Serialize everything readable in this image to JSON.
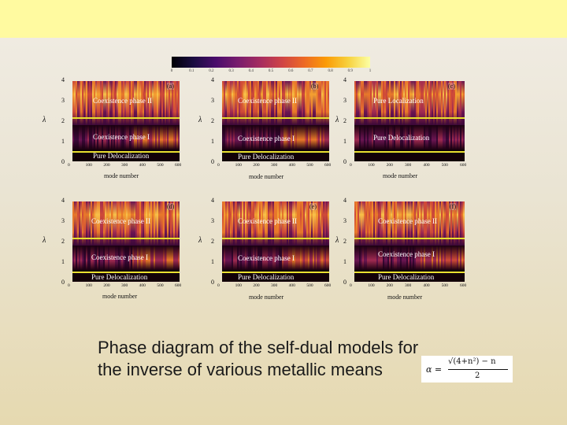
{
  "colorbar": {
    "ticks": [
      "0",
      "0.1",
      "0.2",
      "0.3",
      "0.4",
      "0.5",
      "0.6",
      "0.7",
      "0.8",
      "0.9",
      "1"
    ]
  },
  "panels": [
    {
      "letter": "(a)",
      "ylabel": "λ",
      "xlabel": "mode number",
      "yticks": [
        "4",
        "3",
        "2",
        "1",
        "0"
      ],
      "xticks": [
        "0",
        "100",
        "200",
        "300",
        "400",
        "500",
        "600"
      ],
      "regions": [
        "Coexistence phase II",
        "Coexistence phase I",
        "Pure Delocalization"
      ]
    },
    {
      "letter": "(b)",
      "ylabel": "λ",
      "xlabel": "mode number",
      "yticks": [
        "4",
        "3",
        "2",
        "1",
        "0"
      ],
      "xticks": [
        "0",
        "100",
        "200",
        "300",
        "400",
        "500",
        "600"
      ],
      "regions": [
        "Coexistence phase II",
        "Coexistence phase I",
        "Pure Delocalization"
      ]
    },
    {
      "letter": "(c)",
      "ylabel": "λ",
      "xlabel": "mode number",
      "yticks": [
        "4",
        "3",
        "2",
        "1",
        "0"
      ],
      "xticks": [
        "0",
        "100",
        "200",
        "300",
        "400",
        "500",
        "600"
      ],
      "regions": [
        "Pure Localization",
        "Pure Delocalization"
      ]
    },
    {
      "letter": "(d)",
      "ylabel": "λ",
      "xlabel": "mode number",
      "yticks": [
        "4",
        "3",
        "2",
        "1",
        "0"
      ],
      "xticks": [
        "0",
        "100",
        "200",
        "300",
        "400",
        "500",
        "600"
      ],
      "regions": [
        "Coexistence phase II",
        "Coexistence phase I",
        "Pure Delocalization"
      ]
    },
    {
      "letter": "(e)",
      "ylabel": "λ",
      "xlabel": "mode number",
      "yticks": [
        "4",
        "3",
        "2",
        "1",
        "0"
      ],
      "xticks": [
        "0",
        "100",
        "200",
        "300",
        "400",
        "500",
        "600"
      ],
      "regions": [
        "Coexistence phase II",
        "Coexistence phase I",
        "Pure Delocalization"
      ]
    },
    {
      "letter": "(f)",
      "ylabel": "λ",
      "xlabel": "mode number",
      "yticks": [
        "4",
        "3",
        "2",
        "1",
        "0"
      ],
      "xticks": [
        "0",
        "100",
        "200",
        "300",
        "400",
        "500",
        "600"
      ],
      "regions": [
        "Coexistence phase II",
        "Coexistence phase I",
        "Pure Delocalization"
      ]
    }
  ],
  "caption": {
    "line1": "Phase diagram of the self-dual models for",
    "line2": "the inverse of various metallic means"
  },
  "formula": {
    "lhs": "α =",
    "numerator": "√(4+n²) − n",
    "denominator": "2"
  }
}
